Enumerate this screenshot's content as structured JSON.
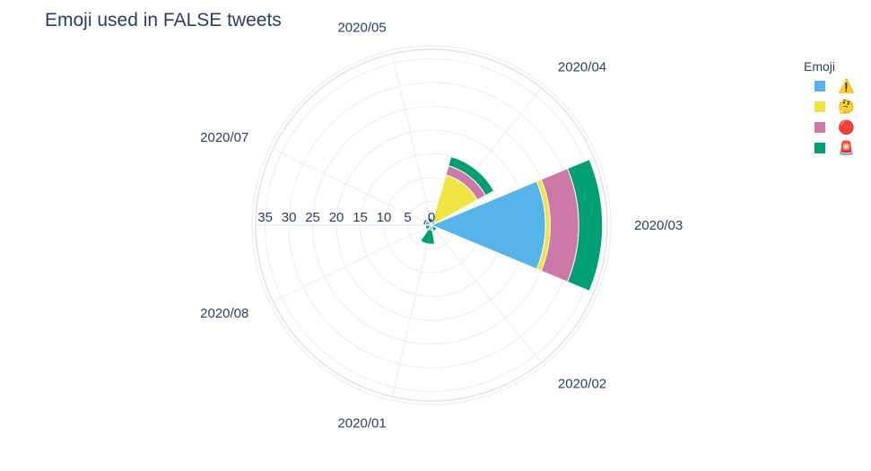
{
  "chart_data": {
    "type": "barpolar",
    "title": "Emoji used in FALSE tweets",
    "angular_categories": [
      "2020/01",
      "2020/02",
      "2020/03",
      "2020/04",
      "2020/05",
      "2020/07",
      "2020/08"
    ],
    "radial_ticks": [
      "0",
      "5",
      "10",
      "15",
      "20",
      "25",
      "30",
      "35"
    ],
    "radial_range": [
      0,
      37
    ],
    "stacked": true,
    "legend": {
      "title": "Emoji",
      "placement": "top-right"
    },
    "series": [
      {
        "name": "⚠️",
        "color": "#56b4e9",
        "values": {
          "2020/01": 1,
          "2020/02": 0.3,
          "2020/03": 24,
          "2020/04": 1,
          "2020/05": 0.5,
          "2020/07": 0.3,
          "2020/08": 0.3
        }
      },
      {
        "name": "🤔",
        "color": "#f0e442",
        "values": {
          "2020/01": 0,
          "2020/02": 0,
          "2020/03": 1,
          "2020/04": 10,
          "2020/05": 0,
          "2020/07": 0,
          "2020/08": 0
        }
      },
      {
        "name": "🔴",
        "color": "#cc79a7",
        "values": {
          "2020/01": 0,
          "2020/02": 0,
          "2020/03": 6,
          "2020/04": 2,
          "2020/05": 0,
          "2020/07": 1,
          "2020/08": 0
        }
      },
      {
        "name": "🚨",
        "color": "#009e73",
        "values": {
          "2020/01": 3,
          "2020/02": 1,
          "2020/03": 5,
          "2020/04": 2,
          "2020/05": 1,
          "2020/07": 0.5,
          "2020/08": 1
        }
      }
    ]
  }
}
